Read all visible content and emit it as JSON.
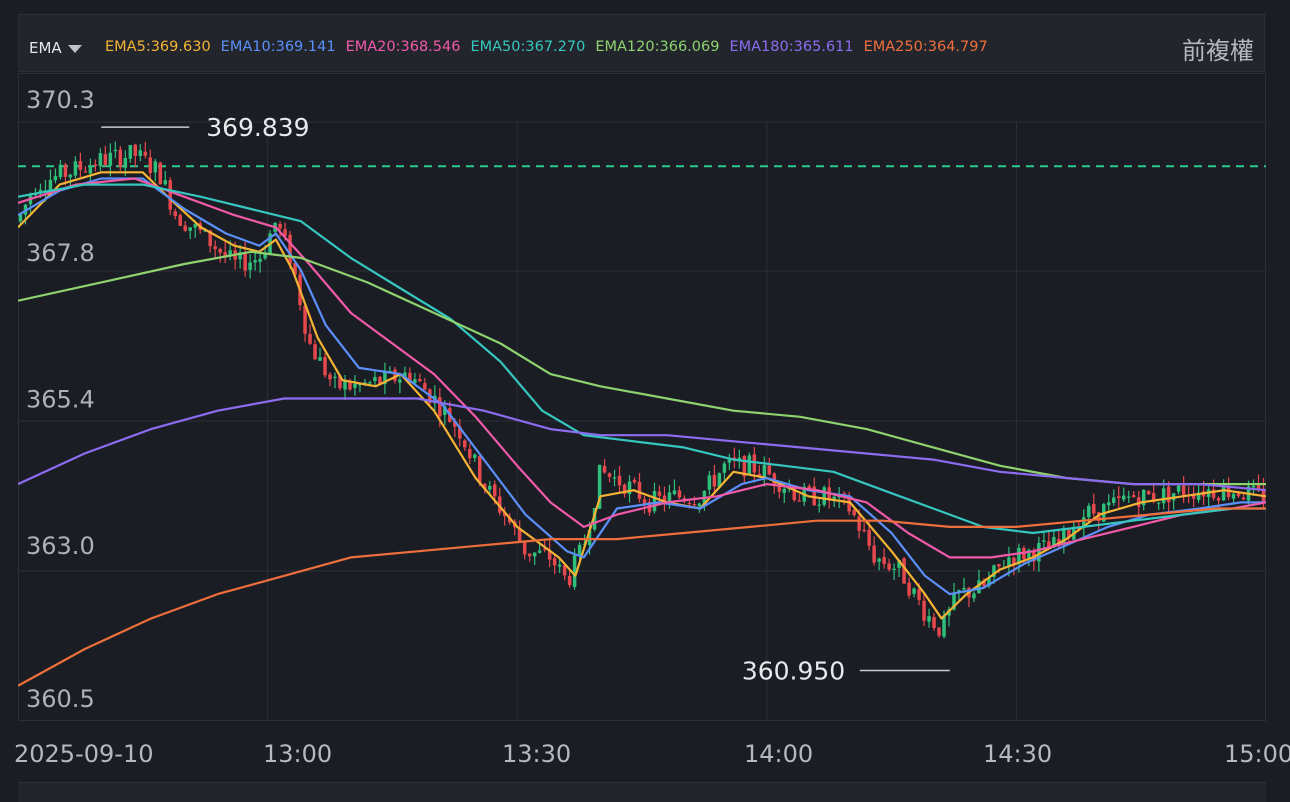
{
  "indicator": {
    "label": "EMA"
  },
  "adjust_label": "前複權",
  "ema_lines": [
    {
      "name": "EMA5",
      "text": "EMA5:369.630",
      "color": "#f5b335"
    },
    {
      "name": "EMA10",
      "text": "EMA10:369.141",
      "color": "#5b8ff9"
    },
    {
      "name": "EMA20",
      "text": "EMA20:368.546",
      "color": "#f05aa8"
    },
    {
      "name": "EMA50",
      "text": "EMA50:367.270",
      "color": "#36c6c0"
    },
    {
      "name": "EMA120",
      "text": "EMA120:366.069",
      "color": "#8ed36f"
    },
    {
      "name": "EMA180",
      "text": "EMA180:365.611",
      "color": "#8c6cf0"
    },
    {
      "name": "EMA250",
      "text": "EMA250:364.797",
      "color": "#ef6f3c"
    }
  ],
  "chart_data": {
    "type": "candlestick",
    "ylim": [
      360.0,
      371.0
    ],
    "y_ticks": [
      {
        "value": 370.3,
        "label": "370.3"
      },
      {
        "value": 367.8,
        "label": "367.8"
      },
      {
        "value": 365.4,
        "label": "365.4"
      },
      {
        "value": 363.0,
        "label": "363.0"
      },
      {
        "value": 360.5,
        "label": "360.5"
      }
    ],
    "x_ticks": [
      {
        "time": "12:30",
        "label": "2025-09-10"
      },
      {
        "time": "13:00",
        "label": "13:00"
      },
      {
        "time": "13:30",
        "label": "13:30"
      },
      {
        "time": "14:00",
        "label": "14:00"
      },
      {
        "time": "14:30",
        "label": "14:30"
      },
      {
        "time": "15:00",
        "label": "15:00"
      }
    ],
    "reference_line": {
      "value": 369.2,
      "color": "#2ecc8f"
    },
    "annotations": [
      {
        "label": "369.839",
        "value": 369.839,
        "time": "12:40"
      },
      {
        "label": "360.950",
        "value": 360.95,
        "time": "14:22"
      }
    ],
    "price_path": [
      [
        "12:30",
        368.3
      ],
      [
        "12:32",
        368.9
      ],
      [
        "12:36",
        369.1
      ],
      [
        "12:40",
        369.3
      ],
      [
        "12:44",
        369.4
      ],
      [
        "12:47",
        369.1
      ],
      [
        "12:49",
        368.4
      ],
      [
        "12:52",
        368.1
      ],
      [
        "12:56",
        367.6
      ],
      [
        "12:59",
        367.7
      ],
      [
        "13:01",
        368.3
      ],
      [
        "13:03",
        367.6
      ],
      [
        "13:05",
        366.3
      ],
      [
        "13:08",
        365.6
      ],
      [
        "13:11",
        365.6
      ],
      [
        "13:14",
        365.7
      ],
      [
        "13:17",
        365.8
      ],
      [
        "13:20",
        365.4
      ],
      [
        "13:23",
        364.9
      ],
      [
        "13:26",
        364.0
      ],
      [
        "13:29",
        363.4
      ],
      [
        "13:31",
        362.9
      ],
      [
        "13:34",
        362.8
      ],
      [
        "13:36",
        362.4
      ],
      [
        "13:38",
        363.0
      ],
      [
        "13:40",
        364.2
      ],
      [
        "13:43",
        364.0
      ],
      [
        "13:46",
        363.7
      ],
      [
        "13:49",
        363.8
      ],
      [
        "13:52",
        363.8
      ],
      [
        "13:55",
        364.3
      ],
      [
        "13:58",
        364.3
      ],
      [
        "14:01",
        364.1
      ],
      [
        "14:04",
        363.8
      ],
      [
        "14:07",
        363.8
      ],
      [
        "14:10",
        363.6
      ],
      [
        "14:13",
        362.8
      ],
      [
        "14:16",
        362.6
      ],
      [
        "14:19",
        361.9
      ],
      [
        "14:21",
        361.6
      ],
      [
        "14:23",
        362.2
      ],
      [
        "14:26",
        362.3
      ],
      [
        "14:29",
        362.8
      ],
      [
        "14:32",
        362.9
      ],
      [
        "14:35",
        363.0
      ],
      [
        "14:38",
        363.5
      ],
      [
        "14:41",
        363.6
      ],
      [
        "14:44",
        363.8
      ],
      [
        "14:47",
        363.8
      ],
      [
        "14:50",
        363.9
      ],
      [
        "14:53",
        363.9
      ],
      [
        "14:56",
        363.9
      ],
      [
        "14:59",
        363.8
      ]
    ],
    "series": [
      {
        "name": "EMA5",
        "color": "#f5b335",
        "points": [
          [
            "12:30",
            368.2
          ],
          [
            "12:35",
            368.9
          ],
          [
            "12:40",
            369.1
          ],
          [
            "12:45",
            369.1
          ],
          [
            "12:48",
            368.7
          ],
          [
            "12:52",
            368.2
          ],
          [
            "12:56",
            367.9
          ],
          [
            "12:59",
            367.8
          ],
          [
            "13:01",
            368.0
          ],
          [
            "13:03",
            367.5
          ],
          [
            "13:06",
            366.4
          ],
          [
            "13:09",
            365.7
          ],
          [
            "13:13",
            365.6
          ],
          [
            "13:16",
            365.8
          ],
          [
            "13:20",
            365.2
          ],
          [
            "13:25",
            364.1
          ],
          [
            "13:30",
            363.3
          ],
          [
            "13:35",
            362.8
          ],
          [
            "13:37",
            362.5
          ],
          [
            "13:40",
            363.8
          ],
          [
            "13:44",
            363.9
          ],
          [
            "13:48",
            363.7
          ],
          [
            "13:52",
            363.6
          ],
          [
            "13:56",
            364.2
          ],
          [
            "14:00",
            364.1
          ],
          [
            "14:05",
            363.8
          ],
          [
            "14:10",
            363.7
          ],
          [
            "14:15",
            362.9
          ],
          [
            "14:19",
            362.2
          ],
          [
            "14:21",
            361.8
          ],
          [
            "14:24",
            362.2
          ],
          [
            "14:28",
            362.6
          ],
          [
            "14:32",
            362.8
          ],
          [
            "14:36",
            363.1
          ],
          [
            "14:40",
            363.5
          ],
          [
            "14:45",
            363.7
          ],
          [
            "14:50",
            363.8
          ],
          [
            "14:55",
            363.9
          ],
          [
            "15:00",
            363.8
          ]
        ]
      },
      {
        "name": "EMA10",
        "color": "#5b8ff9",
        "points": [
          [
            "12:30",
            368.4
          ],
          [
            "12:35",
            368.8
          ],
          [
            "12:40",
            369.0
          ],
          [
            "12:45",
            369.0
          ],
          [
            "12:50",
            368.5
          ],
          [
            "12:55",
            368.1
          ],
          [
            "12:59",
            367.9
          ],
          [
            "13:01",
            368.1
          ],
          [
            "13:04",
            367.5
          ],
          [
            "13:07",
            366.6
          ],
          [
            "13:11",
            365.9
          ],
          [
            "13:16",
            365.8
          ],
          [
            "13:21",
            365.3
          ],
          [
            "13:26",
            364.4
          ],
          [
            "13:31",
            363.5
          ],
          [
            "13:36",
            362.9
          ],
          [
            "13:38",
            362.8
          ],
          [
            "13:42",
            363.6
          ],
          [
            "13:47",
            363.7
          ],
          [
            "13:52",
            363.6
          ],
          [
            "13:57",
            364.0
          ],
          [
            "14:00",
            364.1
          ],
          [
            "14:05",
            363.9
          ],
          [
            "14:10",
            363.8
          ],
          [
            "14:15",
            363.2
          ],
          [
            "14:19",
            362.5
          ],
          [
            "14:22",
            362.2
          ],
          [
            "14:26",
            362.3
          ],
          [
            "14:31",
            362.7
          ],
          [
            "14:36",
            363.0
          ],
          [
            "14:41",
            363.3
          ],
          [
            "14:46",
            363.5
          ],
          [
            "14:52",
            363.6
          ],
          [
            "14:57",
            363.7
          ],
          [
            "15:00",
            363.7
          ]
        ]
      },
      {
        "name": "EMA20",
        "color": "#f05aa8",
        "points": [
          [
            "12:30",
            368.6
          ],
          [
            "12:37",
            368.9
          ],
          [
            "12:44",
            369.0
          ],
          [
            "12:50",
            368.7
          ],
          [
            "12:56",
            368.4
          ],
          [
            "13:01",
            368.2
          ],
          [
            "13:05",
            367.6
          ],
          [
            "13:10",
            366.8
          ],
          [
            "13:15",
            366.3
          ],
          [
            "13:20",
            365.8
          ],
          [
            "13:25",
            365.1
          ],
          [
            "13:30",
            364.3
          ],
          [
            "13:34",
            363.7
          ],
          [
            "13:38",
            363.3
          ],
          [
            "13:42",
            363.5
          ],
          [
            "13:48",
            363.7
          ],
          [
            "13:54",
            363.8
          ],
          [
            "14:00",
            364.0
          ],
          [
            "14:06",
            363.9
          ],
          [
            "14:12",
            363.7
          ],
          [
            "14:17",
            363.2
          ],
          [
            "14:22",
            362.8
          ],
          [
            "14:27",
            362.8
          ],
          [
            "14:32",
            362.9
          ],
          [
            "14:38",
            363.1
          ],
          [
            "14:44",
            363.3
          ],
          [
            "14:50",
            363.5
          ],
          [
            "14:56",
            363.6
          ],
          [
            "15:00",
            363.7
          ]
        ]
      },
      {
        "name": "EMA50",
        "color": "#36c6c0",
        "points": [
          [
            "12:30",
            368.7
          ],
          [
            "12:38",
            368.9
          ],
          [
            "12:45",
            368.9
          ],
          [
            "12:52",
            368.7
          ],
          [
            "12:58",
            368.5
          ],
          [
            "13:04",
            368.3
          ],
          [
            "13:10",
            367.7
          ],
          [
            "13:16",
            367.2
          ],
          [
            "13:22",
            366.7
          ],
          [
            "13:28",
            366.0
          ],
          [
            "13:33",
            365.2
          ],
          [
            "13:38",
            364.8
          ],
          [
            "13:44",
            364.7
          ],
          [
            "13:50",
            364.6
          ],
          [
            "13:56",
            364.4
          ],
          [
            "14:02",
            364.3
          ],
          [
            "14:08",
            364.2
          ],
          [
            "14:14",
            363.9
          ],
          [
            "14:20",
            363.6
          ],
          [
            "14:26",
            363.3
          ],
          [
            "14:32",
            363.2
          ],
          [
            "14:38",
            363.3
          ],
          [
            "14:44",
            363.4
          ],
          [
            "14:50",
            363.5
          ],
          [
            "14:56",
            363.6
          ],
          [
            "15:00",
            363.6
          ]
        ]
      },
      {
        "name": "EMA120",
        "color": "#8ed36f",
        "points": [
          [
            "12:30",
            367.0
          ],
          [
            "12:40",
            367.3
          ],
          [
            "12:50",
            367.6
          ],
          [
            "12:58",
            367.8
          ],
          [
            "13:04",
            367.7
          ],
          [
            "13:12",
            367.3
          ],
          [
            "13:20",
            366.8
          ],
          [
            "13:28",
            366.3
          ],
          [
            "13:34",
            365.8
          ],
          [
            "13:40",
            365.6
          ],
          [
            "13:48",
            365.4
          ],
          [
            "13:56",
            365.2
          ],
          [
            "14:04",
            365.1
          ],
          [
            "14:12",
            364.9
          ],
          [
            "14:20",
            364.6
          ],
          [
            "14:28",
            364.3
          ],
          [
            "14:36",
            364.1
          ],
          [
            "14:44",
            364.0
          ],
          [
            "14:52",
            364.0
          ],
          [
            "15:00",
            364.0
          ]
        ]
      },
      {
        "name": "EMA180",
        "color": "#8c6cf0",
        "points": [
          [
            "12:30",
            364.0
          ],
          [
            "12:38",
            364.5
          ],
          [
            "12:46",
            364.9
          ],
          [
            "12:54",
            365.2
          ],
          [
            "13:02",
            365.4
          ],
          [
            "13:10",
            365.4
          ],
          [
            "13:18",
            365.4
          ],
          [
            "13:26",
            365.2
          ],
          [
            "13:34",
            364.9
          ],
          [
            "13:40",
            364.8
          ],
          [
            "13:48",
            364.8
          ],
          [
            "13:56",
            364.7
          ],
          [
            "14:04",
            364.6
          ],
          [
            "14:12",
            364.5
          ],
          [
            "14:20",
            364.4
          ],
          [
            "14:28",
            364.2
          ],
          [
            "14:36",
            364.1
          ],
          [
            "14:44",
            364.0
          ],
          [
            "14:52",
            364.0
          ],
          [
            "15:00",
            363.9
          ]
        ]
      },
      {
        "name": "EMA250",
        "color": "#ef6f3c",
        "points": [
          [
            "12:30",
            360.7
          ],
          [
            "12:38",
            361.3
          ],
          [
            "12:46",
            361.8
          ],
          [
            "12:54",
            362.2
          ],
          [
            "13:02",
            362.5
          ],
          [
            "13:10",
            362.8
          ],
          [
            "13:18",
            362.9
          ],
          [
            "13:26",
            363.0
          ],
          [
            "13:34",
            363.1
          ],
          [
            "13:42",
            363.1
          ],
          [
            "13:50",
            363.2
          ],
          [
            "13:58",
            363.3
          ],
          [
            "14:06",
            363.4
          ],
          [
            "14:14",
            363.4
          ],
          [
            "14:22",
            363.3
          ],
          [
            "14:30",
            363.3
          ],
          [
            "14:38",
            363.4
          ],
          [
            "14:46",
            363.5
          ],
          [
            "14:54",
            363.6
          ],
          [
            "15:00",
            363.6
          ]
        ]
      }
    ]
  }
}
